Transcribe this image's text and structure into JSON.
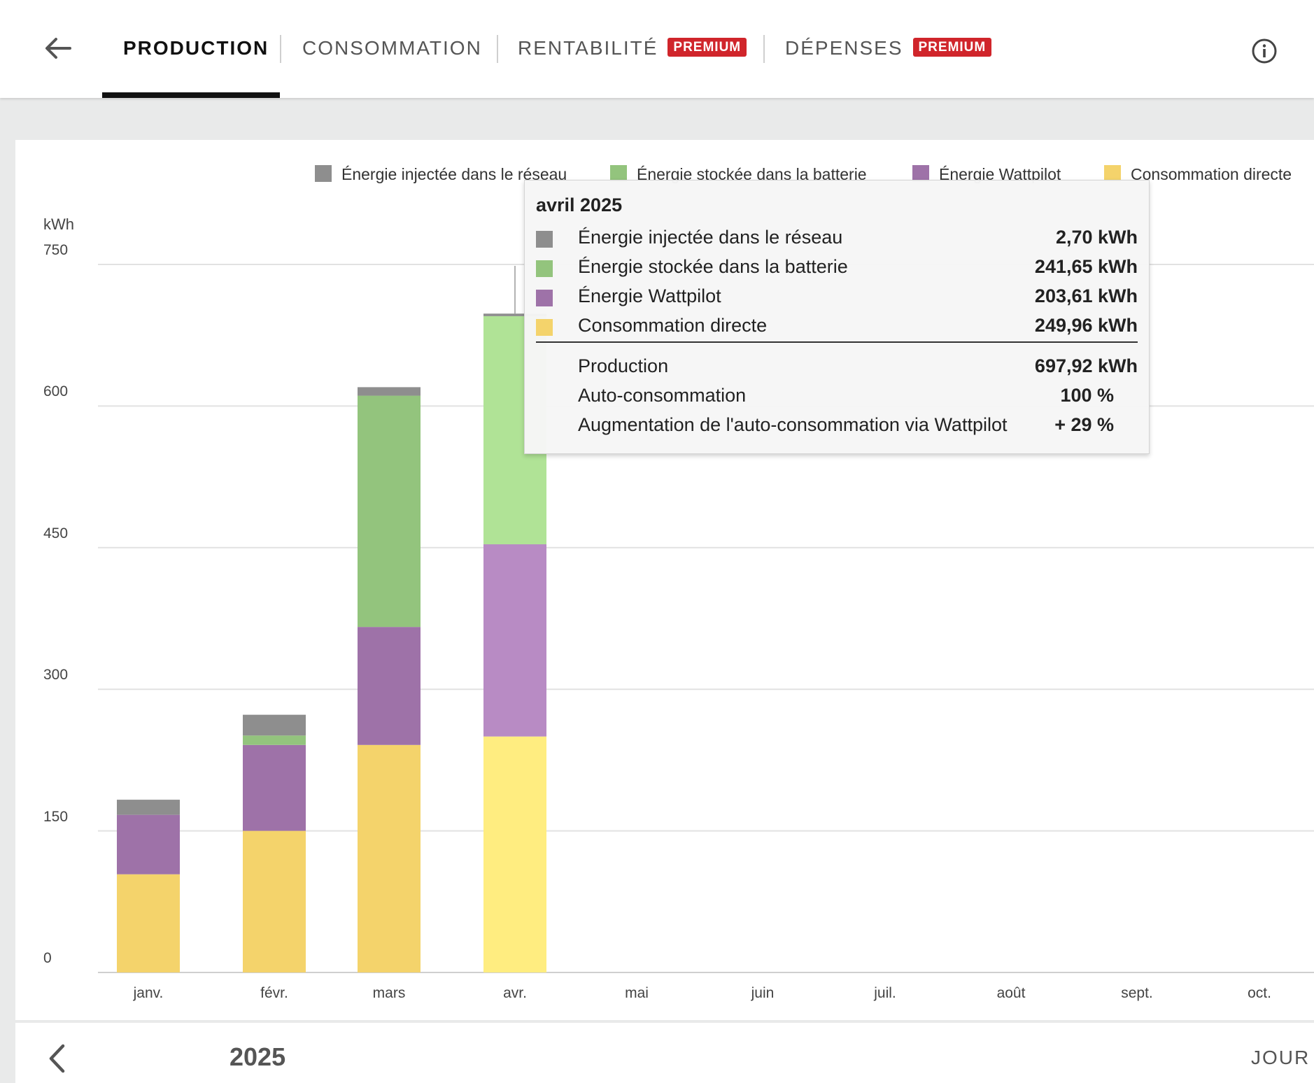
{
  "header": {
    "tabs": [
      {
        "label": "PRODUCTION",
        "active": true
      },
      {
        "label": "CONSOMMATION",
        "active": false
      },
      {
        "label": "RENTABILITÉ",
        "badge": "PREMIUM",
        "active": false
      },
      {
        "label": "DÉPENSES",
        "badge": "PREMIUM",
        "active": false
      }
    ]
  },
  "colors": {
    "grid_injected": "#8e8e8e",
    "battery": "#93c47d",
    "wattpilot": "#9e72a8",
    "direct": "#f4d36b",
    "battery_highlight": "#b0e396",
    "wattpilot_highlight": "#b88bc4",
    "direct_highlight": "#ffed80",
    "premium_badge": "#d0252b"
  },
  "chart_data": {
    "type": "bar",
    "stacked": true,
    "ylabel": "kWh",
    "ylim": [
      0,
      750
    ],
    "yticks": [
      "0",
      "150",
      "300",
      "450",
      "600",
      "750"
    ],
    "categories": [
      "janv.",
      "févr.",
      "mars",
      "avr.",
      "mai",
      "juin",
      "juil.",
      "août",
      "sept.",
      "oct."
    ],
    "series": [
      {
        "name": "Énergie injectée dans le réseau",
        "values": [
          16,
          22,
          9,
          2.7,
          null,
          null,
          null,
          null,
          null,
          null
        ]
      },
      {
        "name": "Énergie stockée dans la batterie",
        "values": [
          0,
          10,
          245,
          241.65,
          null,
          null,
          null,
          null,
          null,
          null
        ]
      },
      {
        "name": "Énergie Wattpilot",
        "values": [
          63,
          91,
          125,
          203.61,
          null,
          null,
          null,
          null,
          null,
          null
        ]
      },
      {
        "name": "Consommation directe",
        "values": [
          104,
          150,
          241,
          249.96,
          null,
          null,
          null,
          null,
          null,
          null
        ]
      }
    ],
    "highlighted_category": "avr.",
    "grid": true,
    "legend_position": "top-right"
  },
  "tooltip": {
    "title": "avril 2025",
    "rows": [
      {
        "label": "Énergie injectée dans le réseau",
        "value": "2,70 kWh"
      },
      {
        "label": "Énergie stockée dans la batterie",
        "value": "241,65 kWh"
      },
      {
        "label": "Énergie Wattpilot",
        "value": "203,61 kWh"
      },
      {
        "label": "Consommation directe",
        "value": "249,96 kWh"
      }
    ],
    "summary": [
      {
        "label": "Production",
        "value": "697,92 kWh"
      },
      {
        "label": "Auto-consommation",
        "value": "100 %"
      },
      {
        "label": "Augmentation de l'auto-consommation via Wattpilot",
        "value": "+ 29 %"
      }
    ]
  },
  "footer": {
    "year": "2025",
    "period": "JOUR"
  }
}
